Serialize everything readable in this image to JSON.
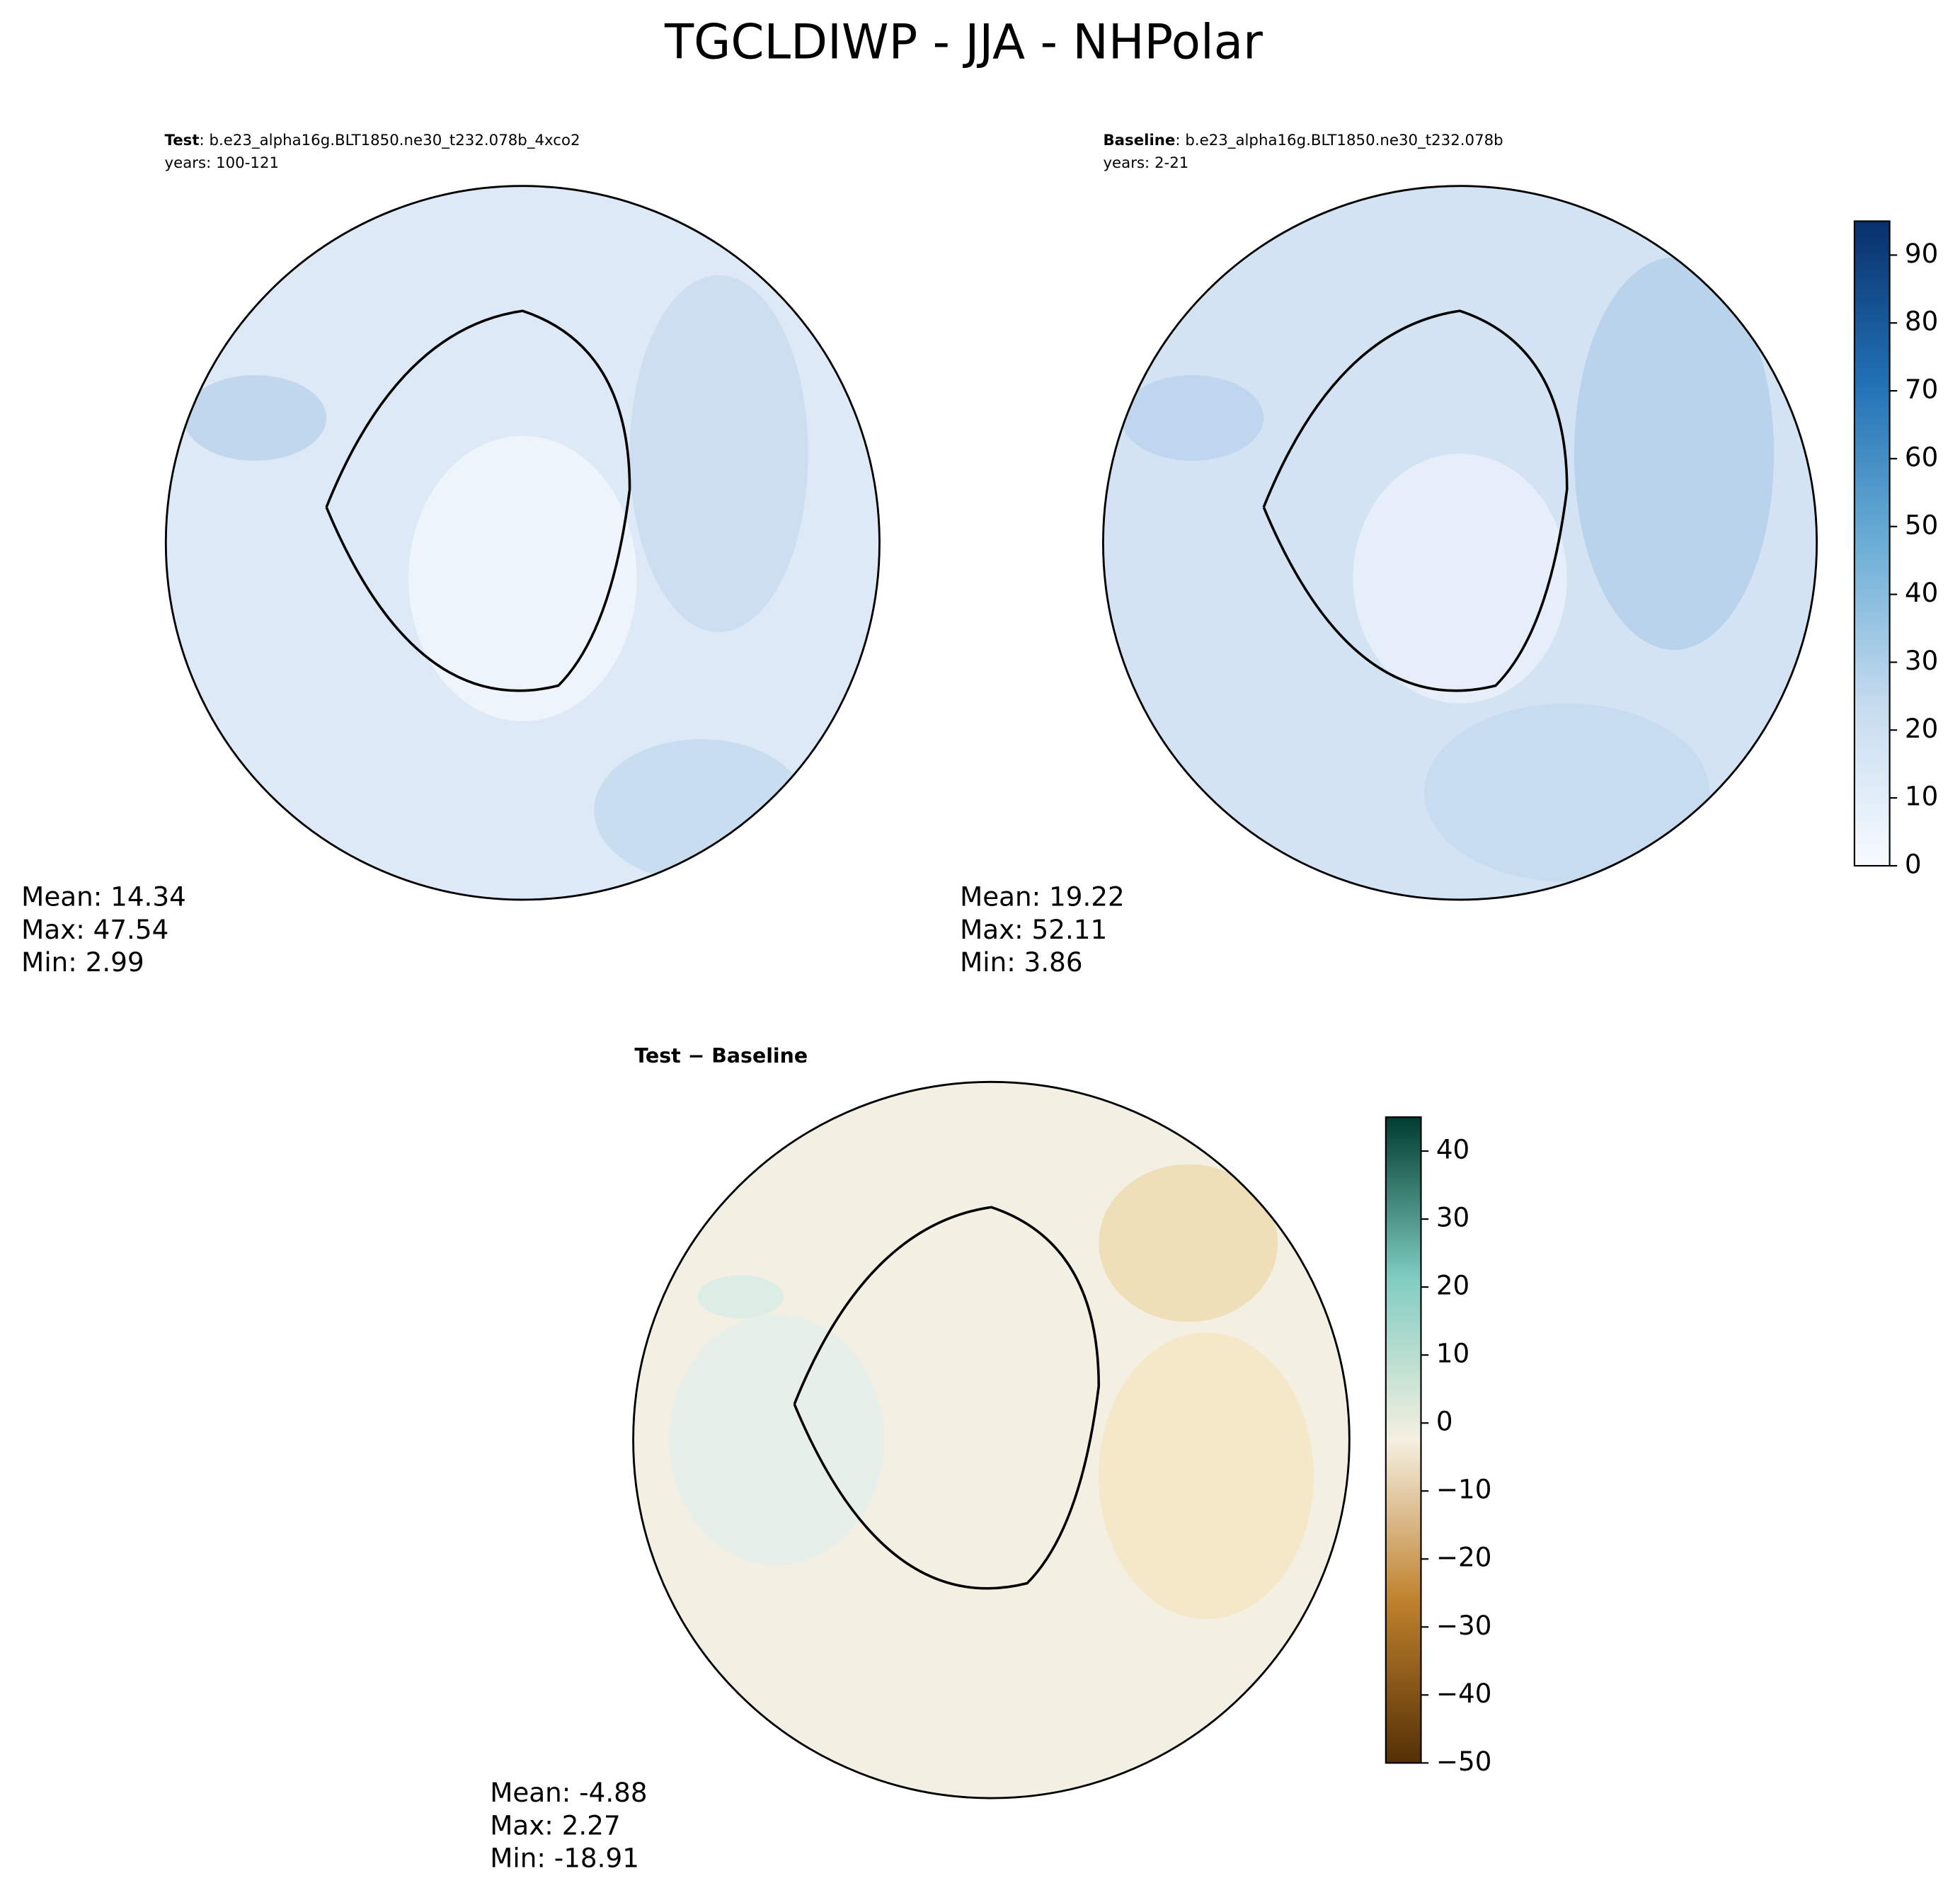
{
  "title": "TGCLDIWP - JJA - NHPolar",
  "panels": [
    {
      "label": "Test",
      "case": ": b.e23_alpha16g.BLT1850.ne30_t232.078b_4xco2",
      "years": "years: 100-121",
      "stats": [
        "Mean: 14.34",
        "Max: 47.54",
        "Min:  2.99"
      ],
      "color": "#dde9f6"
    },
    {
      "label": "Baseline",
      "case": ": b.e23_alpha16g.BLT1850.ne30_t232.078b",
      "years": "years: 2-21",
      "stats": [
        "Mean: 19.22",
        "Max: 52.11",
        "Min:  3.86"
      ],
      "color": "#d3e3f3"
    },
    {
      "label": "Test − Baseline",
      "stats": [
        "Mean: -4.88",
        "Max:  2.27",
        "Min: -18.91"
      ],
      "color": "#f3efe3"
    }
  ],
  "colorbars": [
    {
      "lim": [
        0,
        95
      ],
      "ticks": [
        0,
        10,
        20,
        30,
        40,
        50,
        60,
        70,
        80,
        90
      ],
      "colormap": [
        "#f7fbff",
        "#c6dbef",
        "#6baed6",
        "#2171b5",
        "#08306b"
      ]
    },
    {
      "lim": [
        -50,
        45
      ],
      "ticks": [
        {
          "value": -50,
          "label": "−50"
        },
        {
          "value": -40,
          "label": "−40"
        },
        {
          "value": -30,
          "label": "−30"
        },
        {
          "value": -20,
          "label": "−20"
        },
        {
          "value": -10,
          "label": "−10"
        },
        0,
        10,
        20,
        30,
        40
      ],
      "colormap": [
        "#543005",
        "#bf812d",
        "#f5f0e0",
        "#80cdc1",
        "#003c30"
      ]
    }
  ]
}
